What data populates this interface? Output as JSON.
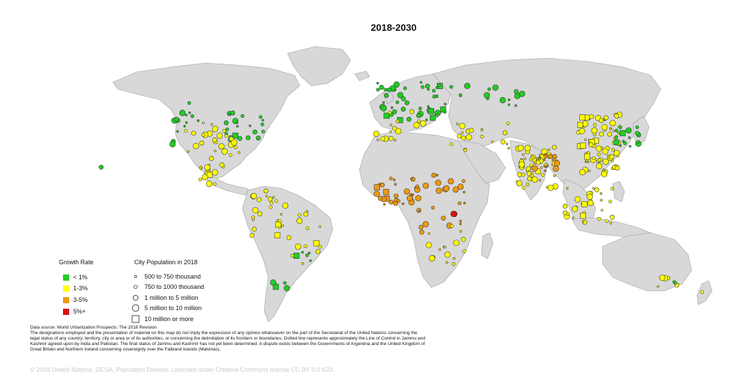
{
  "title": "2018-2030",
  "colors": {
    "land": "#d8d8d8",
    "coast": "#9a9a9a",
    "lt1": "#22cc22",
    "1to3": "#ffff00",
    "3to5": "#ee9911",
    "gt5": "#dd1111"
  },
  "legend": {
    "growth_title": "Growth Rate",
    "growth": [
      {
        "label": "< 1%",
        "color": "#22cc22"
      },
      {
        "label": "1-3%",
        "color": "#ffff00"
      },
      {
        "label": "3-5%",
        "color": "#ee9911"
      },
      {
        "label": "5%+",
        "color": "#dd1111"
      }
    ],
    "pop_title": "City Population in 2018",
    "pop": [
      {
        "label": "500 to 750 thousand",
        "symbol": "dot-xs"
      },
      {
        "label": "750 to 1000 thousand",
        "symbol": "dot-s"
      },
      {
        "label": "1 million to 5 million",
        "symbol": "dot-m"
      },
      {
        "label": "5 million to 10 million",
        "symbol": "dot-l"
      },
      {
        "label": "10 million or more",
        "symbol": "square"
      }
    ]
  },
  "source": "Data source: World Urbanization Prospects: The 2018 Revision",
  "disclaimer": "The designations employed and the presentation of material on this map do not imply the expression of any opinion whatsoever on the part of the Secretariat of the United Nations concerning the legal status of any country, territory, city or area or of its authorities, or concerning the delimitation of its frontiers or boundaries. Dotted line represents approximately the Line of Control in Jammu and Kashmir agreed upon by India and Pakistan. The final status of Jammu and Kashmir has not yet been determined. A dispute exists between the Governments of Argentina and the United Kingdom of Great Britain and Northern Ireland concerning sovereignty over the Falkland Islands (Malvinas).",
  "copyright": "© 2018 United Nations, DESA, Population Division. Licensed under Creative Commons license CC BY 3.0 IGO."
}
